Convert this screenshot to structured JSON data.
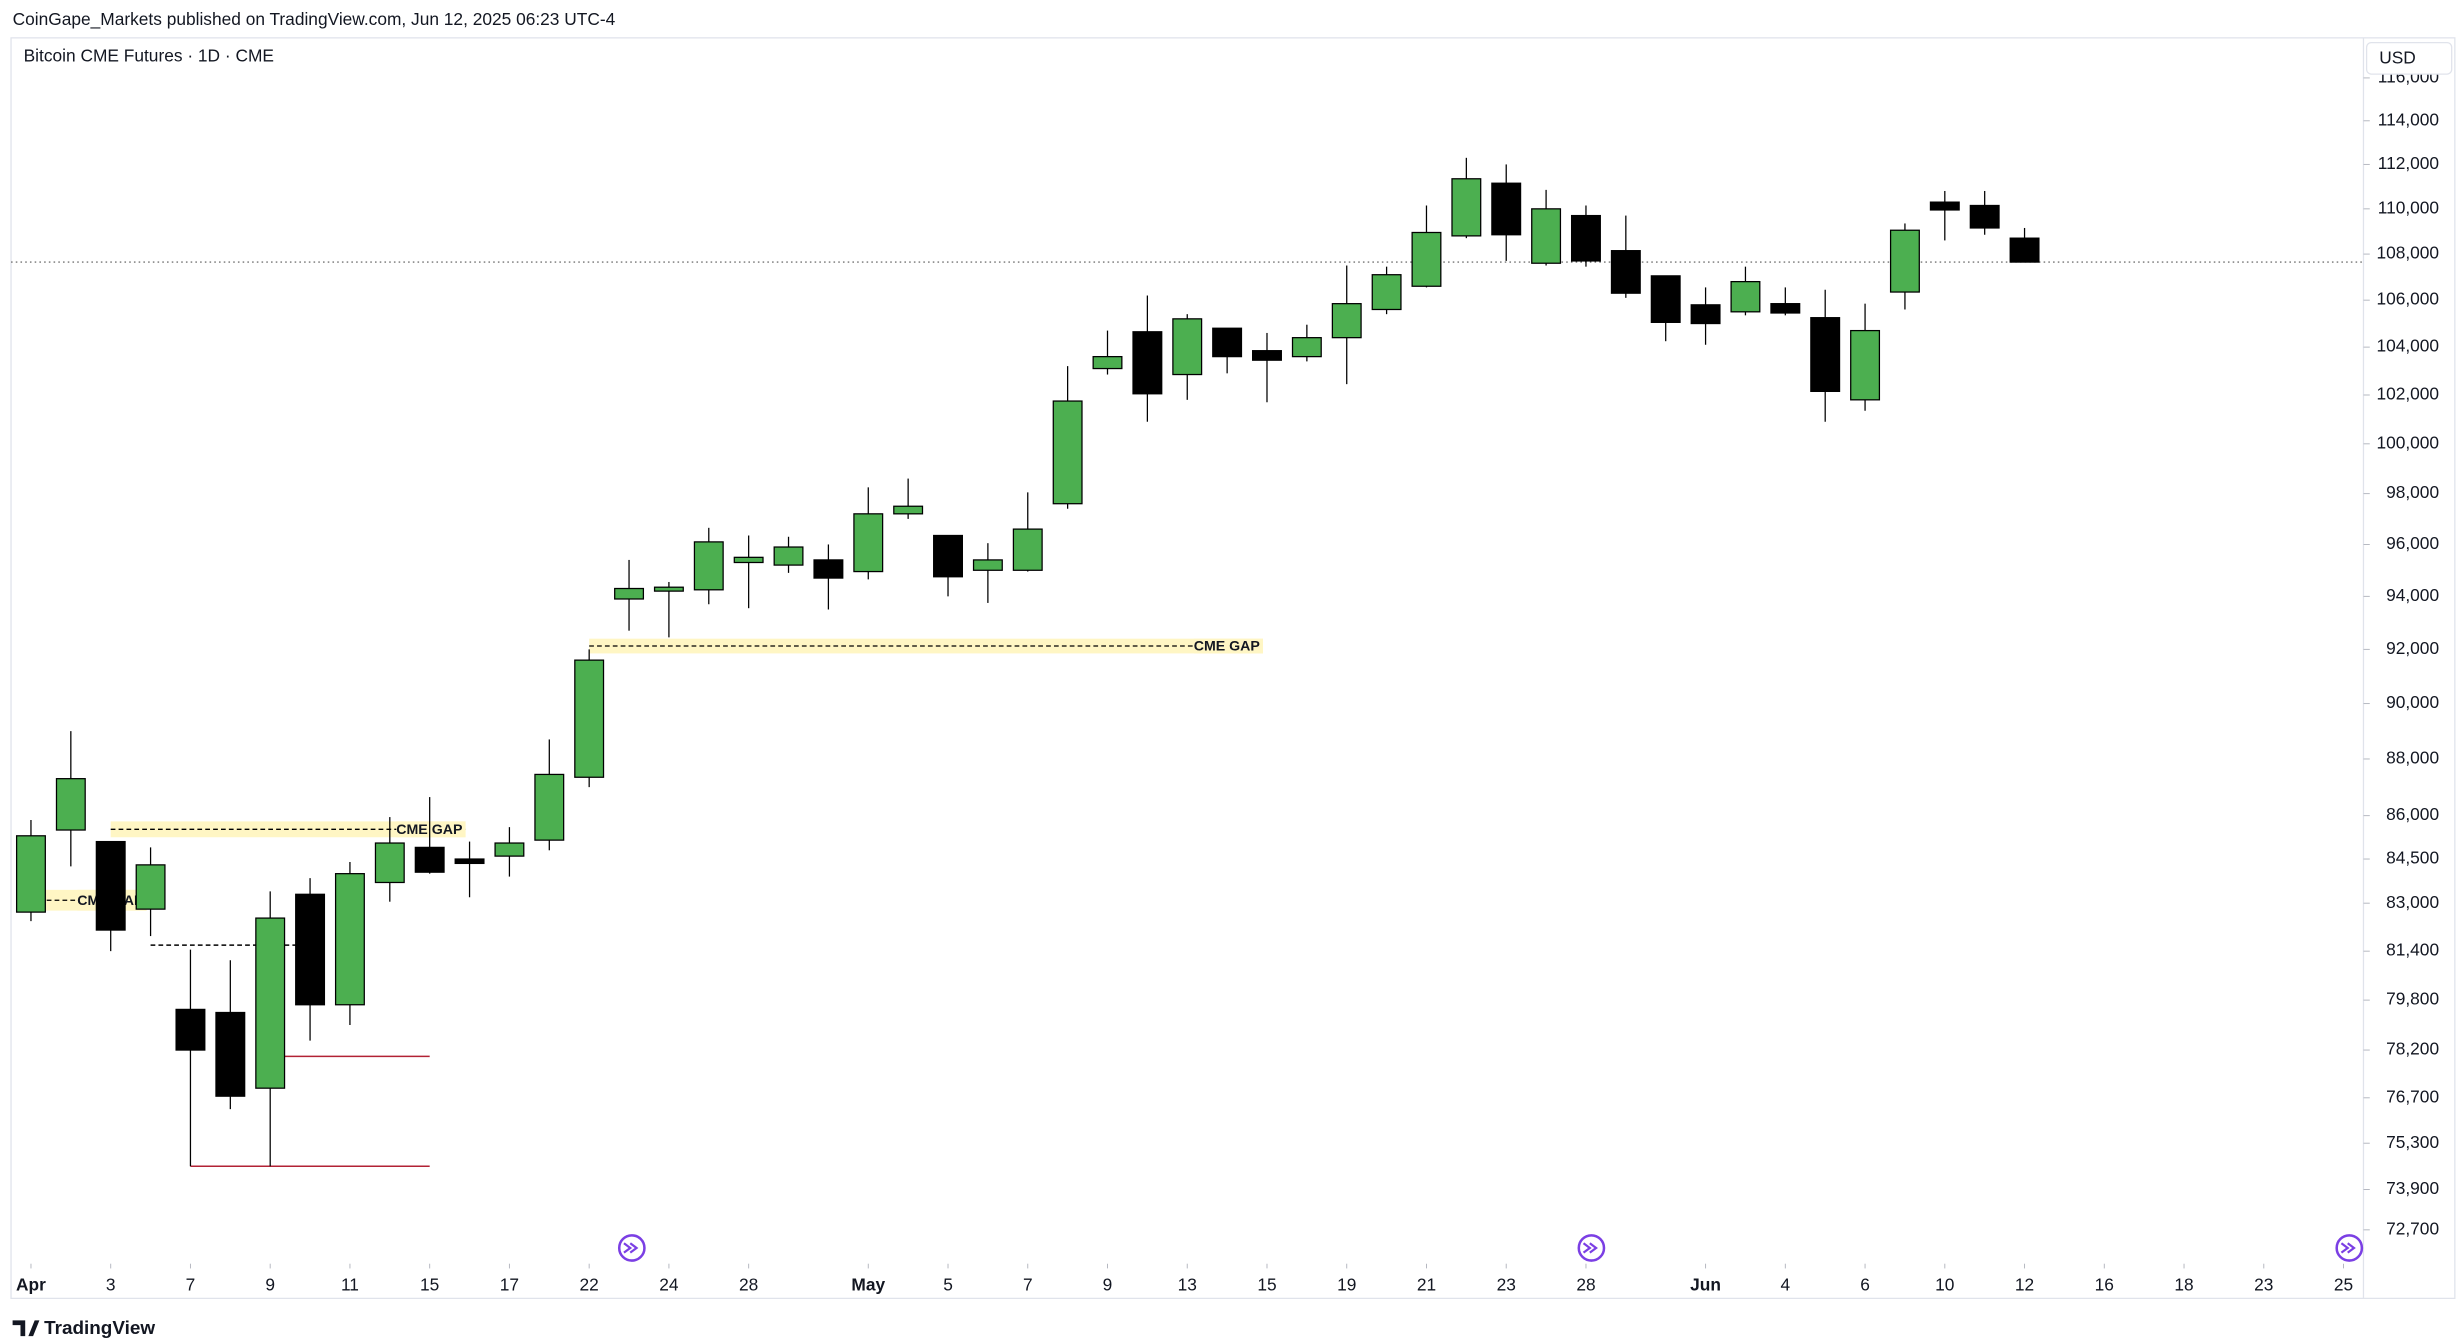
{
  "chart_data": {
    "type": "candlestick",
    "header": "CoinGape_Markets published on TradingView.com, Jun 12, 2025 06:23 UTC-4",
    "title": "Bitcoin CME Futures · 1D · CME",
    "currency": "USD",
    "brand": "TradingView",
    "up_color": "#4caf50",
    "down_color": "#000000",
    "log_scale": true,
    "grid": false,
    "categories": [
      "Apr 1",
      "Apr 2",
      "Apr 3",
      "Apr 4",
      "Apr 7",
      "Apr 8",
      "Apr 9",
      "Apr 10",
      "Apr 11",
      "Apr 14",
      "Apr 15",
      "Apr 16",
      "Apr 17",
      "Apr 21",
      "Apr 22",
      "Apr 23",
      "Apr 24",
      "Apr 25",
      "Apr 28",
      "Apr 29",
      "Apr 30",
      "May 1",
      "May 2",
      "May 5",
      "May 6",
      "May 7",
      "May 8",
      "May 9",
      "May 12",
      "May 13",
      "May 14",
      "May 15",
      "May 16",
      "May 19",
      "May 20",
      "May 21",
      "May 22",
      "May 23",
      "May 27",
      "May 28",
      "May 29",
      "May 30",
      "Jun 2",
      "Jun 3",
      "Jun 4",
      "Jun 5",
      "Jun 6",
      "Jun 9",
      "Jun 10",
      "Jun 11",
      "Jun 12",
      "Jun 13",
      "Jun 16",
      "Jun 17",
      "Jun 18",
      "Jun 20",
      "Jun 23",
      "Jun 24",
      "Jun 25"
    ],
    "open": [
      82700,
      85500,
      85100,
      82800,
      79500,
      79400,
      77000,
      83300,
      79650,
      83700,
      84900,
      84500,
      84600,
      85150,
      87350,
      93900,
      94200,
      94250,
      95300,
      95200,
      95400,
      94950,
      97200,
      96350,
      95000,
      95000,
      97600,
      103100,
      104650,
      102850,
      104800,
      103850,
      103600,
      104400,
      105600,
      106600,
      108800,
      111150,
      107600,
      109700,
      108150,
      107050,
      105800,
      105500,
      105850,
      105250,
      101800,
      106350,
      110300,
      110150,
      108700,
      null,
      null,
      null,
      null,
      null,
      null,
      null,
      null
    ],
    "high": [
      85850,
      89000,
      85100,
      84900,
      81450,
      81100,
      83400,
      83850,
      84400,
      85950,
      86650,
      85100,
      85600,
      88700,
      92000,
      95400,
      94550,
      96650,
      96350,
      96300,
      96000,
      98250,
      98600,
      96350,
      96050,
      98050,
      103200,
      104700,
      106200,
      105400,
      104800,
      104600,
      104950,
      107500,
      107450,
      110150,
      112300,
      112000,
      110850,
      110150,
      109700,
      107050,
      106550,
      107450,
      106550,
      106450,
      105850,
      109350,
      110800,
      110800,
      109150,
      null,
      null,
      null,
      null,
      null,
      null,
      null,
      null
    ],
    "low": [
      82400,
      84250,
      81400,
      81900,
      74600,
      76350,
      74600,
      78500,
      79000,
      83050,
      84000,
      83200,
      83900,
      84800,
      87000,
      92700,
      92450,
      93700,
      93550,
      94900,
      93500,
      94650,
      97000,
      94000,
      93750,
      94950,
      97400,
      102850,
      100900,
      101800,
      102900,
      101700,
      103400,
      102450,
      105400,
      106550,
      108700,
      107700,
      107500,
      107450,
      106100,
      104250,
      104100,
      105350,
      105350,
      100900,
      101350,
      105600,
      108600,
      108850,
      107650,
      null,
      null,
      null,
      null,
      null,
      null,
      null,
      null
    ],
    "close": [
      85300,
      87300,
      82100,
      84300,
      78200,
      76750,
      82500,
      79650,
      84000,
      85050,
      84050,
      84350,
      85050,
      87450,
      91600,
      94300,
      94350,
      96100,
      95500,
      95900,
      94700,
      97200,
      97500,
      94750,
      95400,
      96600,
      101750,
      103600,
      102050,
      105200,
      103600,
      103450,
      104400,
      105850,
      107100,
      108950,
      111350,
      108850,
      110000,
      107700,
      106300,
      105050,
      105000,
      106800,
      105450,
      102150,
      104700,
      109050,
      109950,
      109150,
      107650,
      null,
      null,
      null,
      null,
      null,
      null,
      null,
      null
    ],
    "ylim": [
      71800,
      117900
    ],
    "yticks": [
      {
        "value": 72700,
        "label": "72,700"
      },
      {
        "value": 73900,
        "label": "73,900"
      },
      {
        "value": 75300,
        "label": "75,300"
      },
      {
        "value": 76700,
        "label": "76,700"
      },
      {
        "value": 78200,
        "label": "78,200"
      },
      {
        "value": 79800,
        "label": "79,800"
      },
      {
        "value": 81400,
        "label": "81,400"
      },
      {
        "value": 83000,
        "label": "83,000"
      },
      {
        "value": 84500,
        "label": "84,500"
      },
      {
        "value": 86000,
        "label": "86,000"
      },
      {
        "value": 88000,
        "label": "88,000"
      },
      {
        "value": 90000,
        "label": "90,000"
      },
      {
        "value": 92000,
        "label": "92,000"
      },
      {
        "value": 94000,
        "label": "94,000"
      },
      {
        "value": 96000,
        "label": "96,000"
      },
      {
        "value": 98000,
        "label": "98,000"
      },
      {
        "value": 100000,
        "label": "100,000"
      },
      {
        "value": 102000,
        "label": "102,000"
      },
      {
        "value": 104000,
        "label": "104,000"
      },
      {
        "value": 106000,
        "label": "106,000"
      },
      {
        "value": 108000,
        "label": "108,000"
      },
      {
        "value": 110000,
        "label": "110,000"
      },
      {
        "value": 112000,
        "label": "112,000"
      },
      {
        "value": 114000,
        "label": "114,000"
      },
      {
        "value": 116000,
        "label": "116,000"
      }
    ],
    "xticks": [
      {
        "value": "Apr 1",
        "label": "Apr"
      },
      {
        "value": "Apr 3",
        "label": "3"
      },
      {
        "value": "Apr 7",
        "label": "7"
      },
      {
        "value": "Apr 9",
        "label": "9"
      },
      {
        "value": "Apr 11",
        "label": "11"
      },
      {
        "value": "Apr 15",
        "label": "15"
      },
      {
        "value": "Apr 17",
        "label": "17"
      },
      {
        "value": "Apr 22",
        "label": "22"
      },
      {
        "value": "Apr 24",
        "label": "24"
      },
      {
        "value": "Apr 28",
        "label": "28"
      },
      {
        "value": "May 1",
        "label": "May"
      },
      {
        "value": "May 5",
        "label": "5"
      },
      {
        "value": "May 7",
        "label": "7"
      },
      {
        "value": "May 9",
        "label": "9"
      },
      {
        "value": "May 13",
        "label": "13"
      },
      {
        "value": "May 15",
        "label": "15"
      },
      {
        "value": "May 19",
        "label": "19"
      },
      {
        "value": "May 21",
        "label": "21"
      },
      {
        "value": "May 23",
        "label": "23"
      },
      {
        "value": "May 28",
        "label": "28"
      },
      {
        "value": "Jun 2",
        "label": "Jun"
      },
      {
        "value": "Jun 4",
        "label": "4"
      },
      {
        "value": "Jun 6",
        "label": "6"
      },
      {
        "value": "Jun 10",
        "label": "10"
      },
      {
        "value": "Jun 12",
        "label": "12"
      },
      {
        "value": "Jun 16",
        "label": "16"
      },
      {
        "value": "Jun 18",
        "label": "18"
      },
      {
        "value": "Jun 23",
        "label": "23"
      },
      {
        "value": "Jun 25",
        "label": "25"
      }
    ],
    "gaps": [
      {
        "text": "CME GAP",
        "top": 83450,
        "bottom": 82750,
        "from": "Apr 1",
        "to": "Apr 3"
      },
      {
        "text": "CME GAP",
        "top": 85800,
        "bottom": 85250,
        "from": "Apr 3",
        "to": "Apr 15"
      },
      {
        "text": "CME GAP",
        "top": 92400,
        "bottom": 91850,
        "from": "Apr 22",
        "to": "May 14"
      }
    ],
    "hlines": [
      {
        "value": 78000,
        "from": "Apr 9",
        "to": "Apr 15",
        "color": "#b22234",
        "dashed": false
      },
      {
        "value": 74600,
        "from": "Apr 7",
        "to": "Apr 15",
        "color": "#b22234",
        "dashed": false
      },
      {
        "value": 81600,
        "from": "Apr 4",
        "to": "Apr 10",
        "color": "#000000",
        "dashed": true
      }
    ]
  }
}
